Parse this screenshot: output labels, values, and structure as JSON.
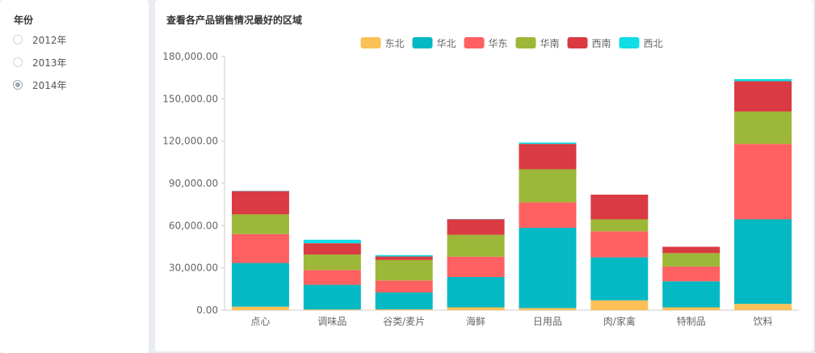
{
  "filter": {
    "title": "年份",
    "options": [
      {
        "label": "2012年",
        "checked": false
      },
      {
        "label": "2013年",
        "checked": false
      },
      {
        "label": "2014年",
        "checked": true
      }
    ]
  },
  "chart_data": {
    "type": "bar",
    "stacked": true,
    "title": "查看各产品销售情况最好的区域",
    "xlabel": "",
    "ylabel": "",
    "ylim": [
      0,
      180000
    ],
    "yticks": [
      "0.00",
      "30,000.00",
      "60,000.00",
      "90,000.00",
      "120,000.00",
      "150,000.00",
      "180,000.00"
    ],
    "ytick_values": [
      0,
      30000,
      60000,
      90000,
      120000,
      150000,
      180000
    ],
    "legend_position": "top",
    "grid": false,
    "categories": [
      "点心",
      "调味品",
      "谷类/麦片",
      "海鲜",
      "日用品",
      "肉/家禽",
      "特制品",
      "饮料"
    ],
    "series": [
      {
        "name": "东北",
        "color": "#fcc058",
        "values": [
          2500,
          500,
          600,
          2000,
          1500,
          7000,
          2000,
          4500
        ]
      },
      {
        "name": "华北",
        "color": "#04b9c3",
        "values": [
          31000,
          17500,
          12000,
          21500,
          57000,
          30500,
          18500,
          60000
        ]
      },
      {
        "name": "华东",
        "color": "#ff6062",
        "values": [
          20500,
          10500,
          8500,
          14500,
          18000,
          18500,
          10500,
          53500
        ]
      },
      {
        "name": "华南",
        "color": "#9db838",
        "values": [
          14000,
          11000,
          14500,
          15500,
          23500,
          8500,
          9500,
          23000
        ]
      },
      {
        "name": "西南",
        "color": "#da3a41",
        "values": [
          16500,
          8000,
          2500,
          11000,
          18000,
          17500,
          4500,
          21500
        ]
      },
      {
        "name": "西北",
        "color": "#10dde7",
        "values": [
          200,
          2500,
          1000,
          200,
          1000,
          0,
          0,
          1500
        ]
      }
    ]
  }
}
